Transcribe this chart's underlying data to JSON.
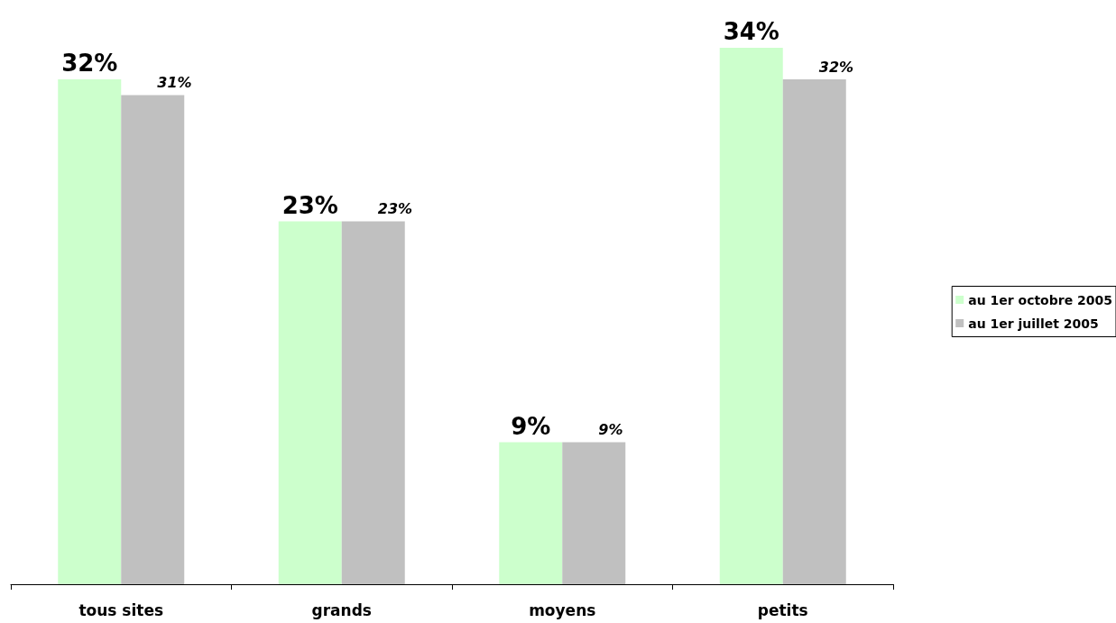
{
  "chart_data": {
    "type": "bar",
    "categories": [
      "tous sites",
      "grands",
      "moyens",
      "petits"
    ],
    "series": [
      {
        "name": "au 1er octobre 2005",
        "color": "#ccffcc",
        "values": [
          32,
          23,
          9,
          34
        ],
        "value_labels": [
          "32%",
          "23%",
          "9%",
          "34%"
        ]
      },
      {
        "name": "au 1er juillet 2005",
        "color": "#c0c0c0",
        "values": [
          31,
          23,
          9,
          32
        ],
        "value_labels": [
          "31%",
          "23%",
          "9%",
          "32%"
        ]
      }
    ],
    "legend": "right",
    "grid": false
  }
}
